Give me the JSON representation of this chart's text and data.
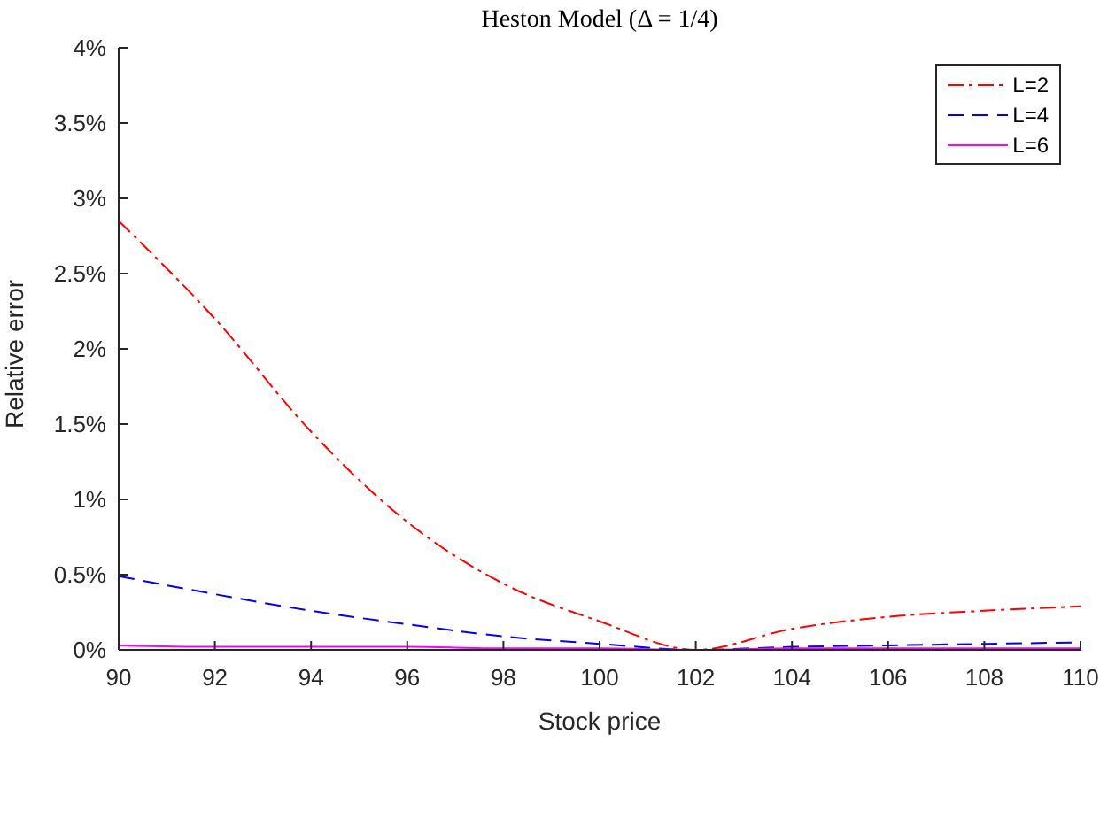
{
  "chart_data": {
    "type": "line",
    "title": "Heston Model (Δ = 1/4)",
    "xlabel": "Stock price",
    "ylabel": "Relative error",
    "x": [
      90,
      92,
      94,
      96,
      98,
      100,
      102,
      104,
      106,
      108,
      110
    ],
    "series": [
      {
        "name": "L=2",
        "color": "#ff0000",
        "line_style": "dashdot",
        "values": [
          2.85,
          2.2,
          1.45,
          0.85,
          0.44,
          0.19,
          0,
          0.14,
          0.22,
          0.26,
          0.29
        ]
      },
      {
        "name": "L=4",
        "color": "#0000ff",
        "line_style": "dashed",
        "values": [
          0.49,
          0.37,
          0.26,
          0.17,
          0.09,
          0.04,
          0,
          0.02,
          0.03,
          0.04,
          0.05
        ]
      },
      {
        "name": "L=6",
        "color": "#ff00ff",
        "line_style": "solid",
        "values": [
          0.03,
          0.02,
          0.02,
          0.02,
          0.01,
          0.01,
          0,
          0.01,
          0.01,
          0.01,
          0.01
        ]
      }
    ],
    "xlim": [
      90,
      110
    ],
    "xticks": [
      90,
      92,
      94,
      96,
      98,
      100,
      102,
      104,
      106,
      108,
      110
    ],
    "ylim": [
      0,
      4
    ],
    "yticks": [
      {
        "value": 0,
        "label": "0%"
      },
      {
        "value": 0.5,
        "label": "0.5%"
      },
      {
        "value": 1,
        "label": "1%"
      },
      {
        "value": 1.5,
        "label": "1.5%"
      },
      {
        "value": 2,
        "label": "2%"
      },
      {
        "value": 2.5,
        "label": "2.5%"
      },
      {
        "value": 3,
        "label": "3%"
      },
      {
        "value": 3.5,
        "label": "3.5%"
      },
      {
        "value": 4,
        "label": "4%"
      }
    ],
    "legend": "top right",
    "marker": "none",
    "grid": false
  }
}
